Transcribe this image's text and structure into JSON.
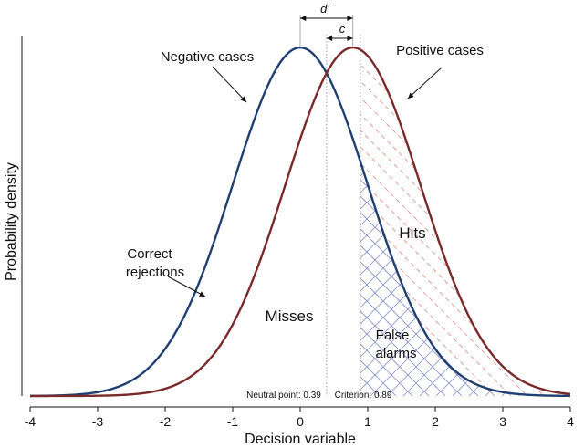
{
  "chart_data": {
    "type": "line",
    "xlabel": "Decision variable",
    "ylabel": "Probability density",
    "xlim": [
      -4,
      4
    ],
    "ylim": [
      0,
      0.42
    ],
    "x_ticks": [
      "-4",
      "-3",
      "-2",
      "-1",
      "0",
      "1",
      "2",
      "3",
      "4"
    ],
    "grid": false,
    "series": [
      {
        "name": "Negative cases",
        "mean": 0,
        "sd": 1,
        "color": "#1f3f73"
      },
      {
        "name": "Positive cases",
        "mean": 0.78,
        "sd": 1,
        "color": "#7a2a2a"
      }
    ],
    "neutral_point": 0.39,
    "criterion": 0.89,
    "annotations": {
      "d_prime": "d'",
      "c": "c",
      "negative": "Negative cases",
      "positive": "Positive cases",
      "correct_rejections": [
        "Correct",
        "rejections"
      ],
      "misses": "Misses",
      "hits": "Hits",
      "false_alarms": [
        "False",
        "alarms"
      ],
      "neutral_label": "Neutral point: 0.39",
      "criterion_label": "Criterion: 0.89"
    },
    "colors": {
      "axis": "#111111",
      "hatch_blue": "#8a93c9",
      "hatch_red": "#d88a8a",
      "guide": "#999999"
    }
  }
}
